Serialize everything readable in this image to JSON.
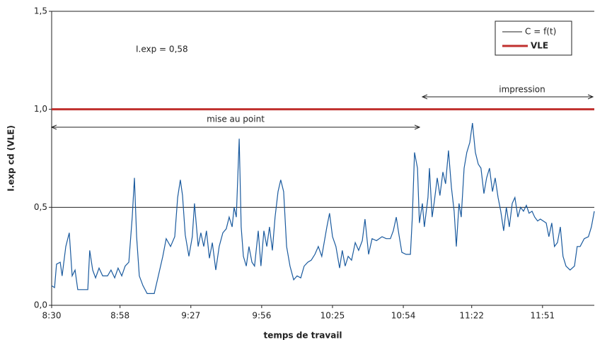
{
  "chart_data": {
    "type": "line",
    "y_label": "I.exp cd (VLE)",
    "x_label": "temps de travail",
    "annotations": [
      "I.exp = 0,58",
      "mise au point",
      "impression"
    ],
    "xlim": [
      510,
      732.2
    ],
    "xticks": [
      {
        "value": 510,
        "label": "8:30"
      },
      {
        "value": 538,
        "label": "8:58"
      },
      {
        "value": 567,
        "label": "9:27"
      },
      {
        "value": 596,
        "label": "9:56"
      },
      {
        "value": 625,
        "label": "10:25"
      },
      {
        "value": 654,
        "label": "10:54"
      },
      {
        "value": 682,
        "label": "11:22"
      },
      {
        "value": 711,
        "label": "11:51"
      }
    ],
    "ylim": [
      0,
      1.5
    ],
    "yticks": [
      {
        "value": 0,
        "label": "0,0"
      },
      {
        "value": 0.5,
        "label": "0,5"
      },
      {
        "value": 1,
        "label": "1,0"
      },
      {
        "value": 1.5,
        "label": "1,5"
      }
    ],
    "grid": true,
    "reference_line": {
      "name": "VLE",
      "color": "#c0302e",
      "value": 1
    },
    "x": [
      510,
      511.2,
      512,
      513.5,
      514.3,
      515.8,
      517.2,
      518.4,
      519.6,
      520.7,
      523.6,
      524.8,
      525.6,
      526.8,
      528,
      529.4,
      530.9,
      532.9,
      534.3,
      535.8,
      537.2,
      538.7,
      540.1,
      541.6,
      543,
      543.9,
      544.8,
      545.9,
      547.4,
      549.1,
      552,
      553.7,
      555.5,
      556.9,
      558.7,
      560.4,
      561.6,
      562.7,
      563.6,
      564.7,
      566.2,
      567.6,
      568.5,
      570,
      571.1,
      572.3,
      573.4,
      574.6,
      575.8,
      577.2,
      578.6,
      580.1,
      581.5,
      582.7,
      583.9,
      584.7,
      585.6,
      586.8,
      587.6,
      588.5,
      589.7,
      590.8,
      592,
      593.1,
      594.6,
      595.7,
      596.9,
      598.1,
      599.2,
      600.4,
      601.5,
      602.7,
      603.8,
      605,
      606.2,
      607.6,
      609.1,
      610.5,
      612,
      613.4,
      614.9,
      616.3,
      617.8,
      619.2,
      620.6,
      622.7,
      623.8,
      625,
      626.4,
      627.9,
      629,
      630.2,
      631.4,
      632.8,
      634.3,
      635.7,
      637.2,
      638.3,
      639.8,
      641.2,
      643,
      645.3,
      647,
      648.7,
      649.9,
      651.1,
      652.2,
      653.4,
      655.1,
      656.9,
      657.7,
      658.6,
      659.8,
      660.6,
      661.8,
      662.6,
      664.1,
      664.7,
      665.8,
      666.7,
      667.9,
      669,
      670.2,
      671.3,
      672.5,
      673.7,
      674.8,
      675.7,
      676.8,
      677.7,
      678.9,
      680,
      681.2,
      682.3,
      683.5,
      684.7,
      685.8,
      687,
      688.1,
      689.3,
      690.5,
      691.6,
      692.8,
      693.9,
      695.1,
      696.2,
      697.4,
      698.6,
      699.7,
      700.9,
      702,
      703.2,
      704.4,
      705.5,
      706.7,
      707.8,
      709,
      710.1,
      711.3,
      712.5,
      713.6,
      714.8,
      715.9,
      717.1,
      718.3,
      719.4,
      720.6,
      722.3,
      724.1,
      725.2,
      726.4,
      728.1,
      729.8,
      731,
      732.2
    ],
    "series": [
      {
        "name": "C = f(t)",
        "color": "#1a5a9e",
        "values": [
          0.1,
          0.09,
          0.21,
          0.22,
          0.15,
          0.3,
          0.37,
          0.15,
          0.18,
          0.08,
          0.08,
          0.08,
          0.28,
          0.18,
          0.14,
          0.19,
          0.15,
          0.15,
          0.18,
          0.14,
          0.19,
          0.15,
          0.2,
          0.22,
          0.45,
          0.65,
          0.35,
          0.15,
          0.1,
          0.06,
          0.06,
          0.15,
          0.25,
          0.34,
          0.3,
          0.35,
          0.55,
          0.64,
          0.56,
          0.36,
          0.25,
          0.35,
          0.52,
          0.3,
          0.37,
          0.3,
          0.38,
          0.24,
          0.32,
          0.18,
          0.3,
          0.37,
          0.39,
          0.45,
          0.4,
          0.5,
          0.45,
          0.85,
          0.4,
          0.25,
          0.2,
          0.3,
          0.22,
          0.2,
          0.38,
          0.2,
          0.38,
          0.3,
          0.4,
          0.28,
          0.45,
          0.58,
          0.64,
          0.58,
          0.3,
          0.2,
          0.13,
          0.15,
          0.14,
          0.2,
          0.22,
          0.23,
          0.26,
          0.3,
          0.25,
          0.4,
          0.47,
          0.35,
          0.3,
          0.19,
          0.28,
          0.2,
          0.25,
          0.23,
          0.32,
          0.28,
          0.33,
          0.44,
          0.26,
          0.34,
          0.33,
          0.35,
          0.34,
          0.34,
          0.38,
          0.45,
          0.36,
          0.27,
          0.26,
          0.26,
          0.45,
          0.78,
          0.7,
          0.42,
          0.52,
          0.4,
          0.55,
          0.7,
          0.45,
          0.53,
          0.65,
          0.56,
          0.68,
          0.62,
          0.79,
          0.6,
          0.48,
          0.3,
          0.52,
          0.45,
          0.7,
          0.78,
          0.83,
          0.93,
          0.78,
          0.72,
          0.7,
          0.57,
          0.65,
          0.7,
          0.58,
          0.65,
          0.55,
          0.48,
          0.38,
          0.5,
          0.4,
          0.52,
          0.55,
          0.45,
          0.5,
          0.48,
          0.51,
          0.47,
          0.48,
          0.45,
          0.43,
          0.44,
          0.43,
          0.42,
          0.35,
          0.42,
          0.3,
          0.32,
          0.4,
          0.25,
          0.2,
          0.18,
          0.2,
          0.3,
          0.3,
          0.34,
          0.35,
          0.4,
          0.48
        ]
      }
    ]
  }
}
